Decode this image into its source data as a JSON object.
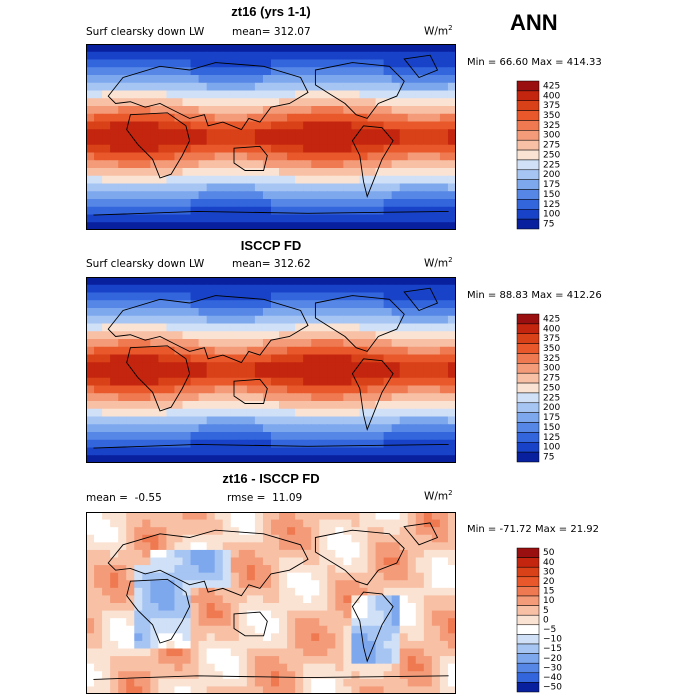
{
  "season": "ANN",
  "units": "W/m",
  "units_sup": "2",
  "chart_data": [
    {
      "type": "heatmap",
      "title": "zt16 (yrs 1-1)",
      "field": "Surf clearsky down LW",
      "mean_label": "mean=",
      "mean": "312.07",
      "min_label": "Min =",
      "min": "66.60",
      "max_label": "Max =",
      "max": "414.33",
      "levels": [
        "425",
        "400",
        "375",
        "350",
        "325",
        "300",
        "275",
        "250",
        "225",
        "200",
        "175",
        "150",
        "125",
        "100",
        "75"
      ],
      "colors": [
        "#9a0f0f",
        "#c4250e",
        "#d94118",
        "#e8582b",
        "#ef7a51",
        "#f49c7a",
        "#f8c0a5",
        "#fbe3d3",
        "#cfe0f7",
        "#a6c5f3",
        "#7ea8ee",
        "#5787e6",
        "#3366dd",
        "#1843c8",
        "#08209e"
      ]
    },
    {
      "type": "heatmap",
      "title": "ISCCP FD",
      "field": "Surf clearsky down LW",
      "mean_label": "mean=",
      "mean": "312.62",
      "min_label": "Min =",
      "min": "88.83",
      "max_label": "Max =",
      "max": "412.26",
      "levels": [
        "425",
        "400",
        "375",
        "350",
        "325",
        "300",
        "275",
        "250",
        "225",
        "200",
        "175",
        "150",
        "125",
        "100",
        "75"
      ],
      "colors": [
        "#9a0f0f",
        "#c4250e",
        "#d94118",
        "#e8582b",
        "#ef7a51",
        "#f49c7a",
        "#f8c0a5",
        "#fbe3d3",
        "#cfe0f7",
        "#a6c5f3",
        "#7ea8ee",
        "#5787e6",
        "#3366dd",
        "#1843c8",
        "#08209e"
      ]
    },
    {
      "type": "heatmap",
      "title": "zt16 - ISCCP FD",
      "mean_label": "mean =",
      "mean": "-0.55",
      "rmse_label": "rmse =",
      "rmse": "11.09",
      "min_label": "Min =",
      "min": "-71.72",
      "max_label": "Max =",
      "max": "21.92",
      "levels": [
        "50",
        "40",
        "30",
        "20",
        "15",
        "10",
        "5",
        "0",
        "−5",
        "−10",
        "−15",
        "−20",
        "−30",
        "−40",
        "−50"
      ],
      "colors": [
        "#9a0f0f",
        "#c4250e",
        "#d94118",
        "#e8582b",
        "#ef7a51",
        "#f49c7a",
        "#f8c0a5",
        "#fbe3d3",
        "#ffffff",
        "#cfe0f7",
        "#a6c5f3",
        "#7ea8ee",
        "#5787e6",
        "#3366dd",
        "#08209e"
      ]
    }
  ]
}
